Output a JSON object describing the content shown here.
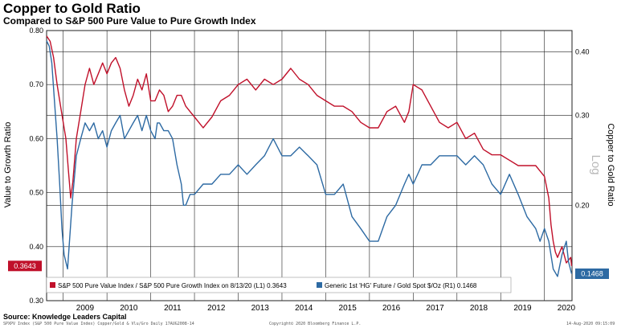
{
  "title": "Copper to Gold Ratio",
  "subtitle": "Compared to S&P 500 Pure Value to Pure Growth Index",
  "source": "Source:  Knowledge Leaders Capital",
  "footer": {
    "left": "SPXPV Index (S&P 500 Pure Value Index) Copper/Gold & Vlu/Gro  Daily 17AUG2008-14",
    "center": "Copyright© 2020 Bloomberg Finance L.P.",
    "right": "14-Aug-2020 09:15:09"
  },
  "colors": {
    "red": "#c0102a",
    "blue": "#2d6aa3",
    "grid": "#222222"
  },
  "chart_data": {
    "type": "line",
    "ylabel_left": "Value to Growth Ratio",
    "ylabel_right": "Copper to Gold Ratio",
    "right_scale_note": "Log",
    "log_right_axis": true,
    "grid": true,
    "legend_position": "bottom",
    "x_ticks": [
      "2009",
      "2010",
      "2011",
      "2012",
      "2013",
      "2014",
      "2015",
      "2016",
      "2017",
      "2018",
      "2019",
      "2020"
    ],
    "x_range": [
      2008.62,
      2020.63
    ],
    "ylim_left": [
      0.3,
      0.8
    ],
    "ylim_right": [
      0.13,
      0.44
    ],
    "left_ticks": [
      0.3,
      0.4,
      0.5,
      0.6,
      0.7,
      0.8
    ],
    "left_tick_labels": [
      "0.30",
      "0.40",
      "0.50",
      "0.60",
      "0.70",
      "0.80"
    ],
    "right_ticks": [
      0.2,
      0.3,
      0.4
    ],
    "right_tick_labels": [
      "0.20",
      "0.30",
      "0.40"
    ],
    "series": [
      {
        "name": "S&P 500 Pure Value Index / S&P 500 Pure Growth Index on 8/13/20 (L1) 0.3643",
        "axis": "left",
        "color": "#c0102a",
        "last_value_label": "0.3643",
        "x": [
          2008.62,
          2008.7,
          2008.78,
          2008.86,
          2008.94,
          2009.0,
          2009.06,
          2009.12,
          2009.17,
          2009.22,
          2009.3,
          2009.4,
          2009.5,
          2009.6,
          2009.7,
          2009.8,
          2009.9,
          2010.0,
          2010.1,
          2010.2,
          2010.3,
          2010.4,
          2010.5,
          2010.6,
          2010.7,
          2010.8,
          2010.9,
          2011.0,
          2011.1,
          2011.2,
          2011.3,
          2011.4,
          2011.5,
          2011.6,
          2011.7,
          2011.8,
          2011.9,
          2012.0,
          2012.2,
          2012.4,
          2012.6,
          2012.8,
          2013.0,
          2013.2,
          2013.4,
          2013.6,
          2013.8,
          2014.0,
          2014.2,
          2014.4,
          2014.6,
          2014.8,
          2015.0,
          2015.2,
          2015.4,
          2015.6,
          2015.8,
          2016.0,
          2016.2,
          2016.4,
          2016.6,
          2016.8,
          2016.9,
          2017.0,
          2017.2,
          2017.4,
          2017.6,
          2017.8,
          2018.0,
          2018.2,
          2018.4,
          2018.6,
          2018.8,
          2019.0,
          2019.2,
          2019.4,
          2019.6,
          2019.8,
          2019.9,
          2020.0,
          2020.1,
          2020.15,
          2020.2,
          2020.25,
          2020.3,
          2020.4,
          2020.5,
          2020.6,
          2020.62
        ],
        "values": [
          0.79,
          0.78,
          0.75,
          0.7,
          0.66,
          0.63,
          0.6,
          0.54,
          0.49,
          0.52,
          0.6,
          0.65,
          0.7,
          0.73,
          0.7,
          0.72,
          0.74,
          0.72,
          0.74,
          0.75,
          0.73,
          0.69,
          0.66,
          0.68,
          0.71,
          0.69,
          0.72,
          0.67,
          0.67,
          0.69,
          0.68,
          0.65,
          0.66,
          0.68,
          0.68,
          0.66,
          0.65,
          0.64,
          0.62,
          0.64,
          0.67,
          0.68,
          0.7,
          0.71,
          0.69,
          0.71,
          0.7,
          0.71,
          0.73,
          0.71,
          0.7,
          0.68,
          0.67,
          0.66,
          0.66,
          0.65,
          0.63,
          0.62,
          0.62,
          0.65,
          0.66,
          0.63,
          0.65,
          0.7,
          0.69,
          0.66,
          0.63,
          0.62,
          0.63,
          0.6,
          0.61,
          0.58,
          0.57,
          0.57,
          0.56,
          0.55,
          0.55,
          0.55,
          0.54,
          0.53,
          0.49,
          0.44,
          0.41,
          0.39,
          0.38,
          0.4,
          0.37,
          0.38,
          0.3643
        ]
      },
      {
        "name": "Generic 1st 'HG' Future / Gold Spot $/Oz (R1) 0.1468",
        "axis": "right",
        "color": "#2d6aa3",
        "last_value_label": "0.1468",
        "x": [
          2008.62,
          2008.68,
          2008.74,
          2008.8,
          2008.86,
          2008.92,
          2008.97,
          2009.02,
          2009.1,
          2009.2,
          2009.3,
          2009.4,
          2009.5,
          2009.6,
          2009.7,
          2009.8,
          2009.9,
          2010.0,
          2010.1,
          2010.2,
          2010.3,
          2010.4,
          2010.5,
          2010.6,
          2010.7,
          2010.8,
          2010.9,
          2011.0,
          2011.1,
          2011.15,
          2011.2,
          2011.3,
          2011.4,
          2011.5,
          2011.6,
          2011.7,
          2011.75,
          2011.8,
          2011.9,
          2012.0,
          2012.2,
          2012.4,
          2012.6,
          2012.8,
          2013.0,
          2013.2,
          2013.4,
          2013.6,
          2013.8,
          2014.0,
          2014.2,
          2014.4,
          2014.6,
          2014.8,
          2015.0,
          2015.2,
          2015.4,
          2015.6,
          2015.8,
          2016.0,
          2016.2,
          2016.4,
          2016.6,
          2016.8,
          2016.9,
          2017.0,
          2017.2,
          2017.4,
          2017.6,
          2017.8,
          2018.0,
          2018.2,
          2018.4,
          2018.6,
          2018.8,
          2019.0,
          2019.2,
          2019.4,
          2019.6,
          2019.8,
          2019.9,
          2020.0,
          2020.1,
          2020.2,
          2020.3,
          2020.4,
          2020.5,
          2020.55,
          2020.62
        ],
        "values": [
          0.42,
          0.41,
          0.38,
          0.32,
          0.27,
          0.22,
          0.18,
          0.16,
          0.15,
          0.2,
          0.25,
          0.27,
          0.29,
          0.28,
          0.29,
          0.27,
          0.28,
          0.26,
          0.28,
          0.29,
          0.3,
          0.27,
          0.28,
          0.29,
          0.3,
          0.28,
          0.3,
          0.28,
          0.27,
          0.29,
          0.29,
          0.28,
          0.28,
          0.27,
          0.24,
          0.22,
          0.2,
          0.2,
          0.21,
          0.21,
          0.22,
          0.22,
          0.23,
          0.23,
          0.24,
          0.23,
          0.24,
          0.25,
          0.27,
          0.25,
          0.25,
          0.26,
          0.25,
          0.24,
          0.21,
          0.21,
          0.22,
          0.19,
          0.18,
          0.17,
          0.17,
          0.19,
          0.2,
          0.22,
          0.23,
          0.22,
          0.24,
          0.24,
          0.25,
          0.25,
          0.25,
          0.24,
          0.25,
          0.24,
          0.22,
          0.21,
          0.23,
          0.21,
          0.19,
          0.18,
          0.17,
          0.18,
          0.17,
          0.15,
          0.145,
          0.16,
          0.17,
          0.155,
          0.1468
        ]
      }
    ]
  }
}
